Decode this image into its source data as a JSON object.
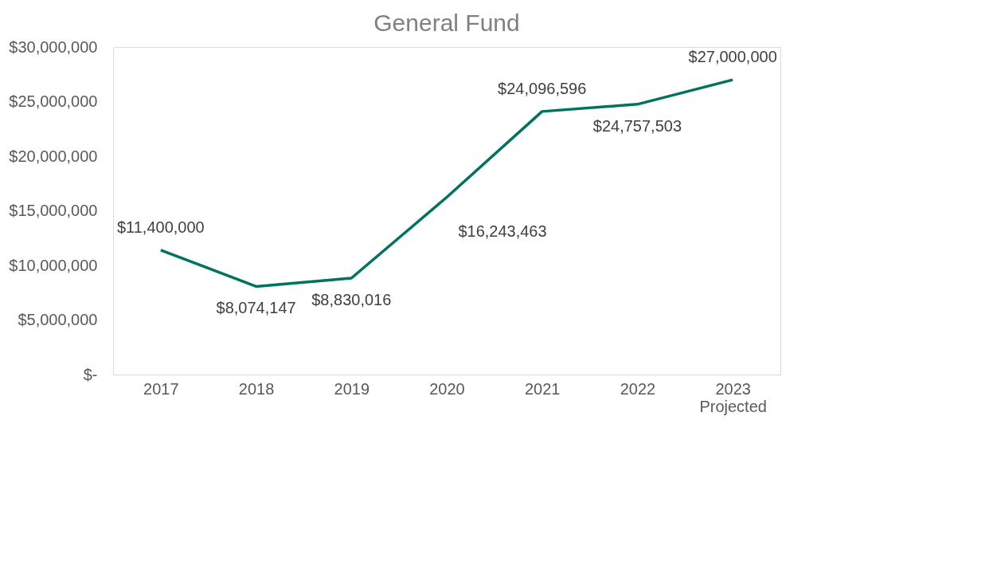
{
  "chart_data": {
    "type": "line",
    "title": "General Fund",
    "categories": [
      "2017",
      "2018",
      "2019",
      "2020",
      "2021",
      "2022",
      "2023\nProjected"
    ],
    "series": [
      {
        "color": "#00735f",
        "values": [
          11400000,
          8074147,
          8830016,
          16243463,
          24096596,
          24757503,
          27000000
        ],
        "value_labels": [
          "$11,400,000",
          "$8,074,147",
          "$8,830,016",
          "$16,243,463",
          "$24,096,596",
          "$24,757,503",
          "$27,000,000"
        ]
      }
    ],
    "ylim": [
      0,
      30000000
    ],
    "yticks": [
      {
        "value": 0,
        "label": "$-"
      },
      {
        "value": 5000000,
        "label": "$5,000,000"
      },
      {
        "value": 10000000,
        "label": "$10,000,000"
      },
      {
        "value": 15000000,
        "label": "$15,000,000"
      },
      {
        "value": 20000000,
        "label": "$20,000,000"
      },
      {
        "value": 25000000,
        "label": "$25,000,000"
      },
      {
        "value": 30000000,
        "label": "$30,000,000"
      }
    ],
    "grid": false,
    "marker": "none",
    "line_style": "solid"
  }
}
